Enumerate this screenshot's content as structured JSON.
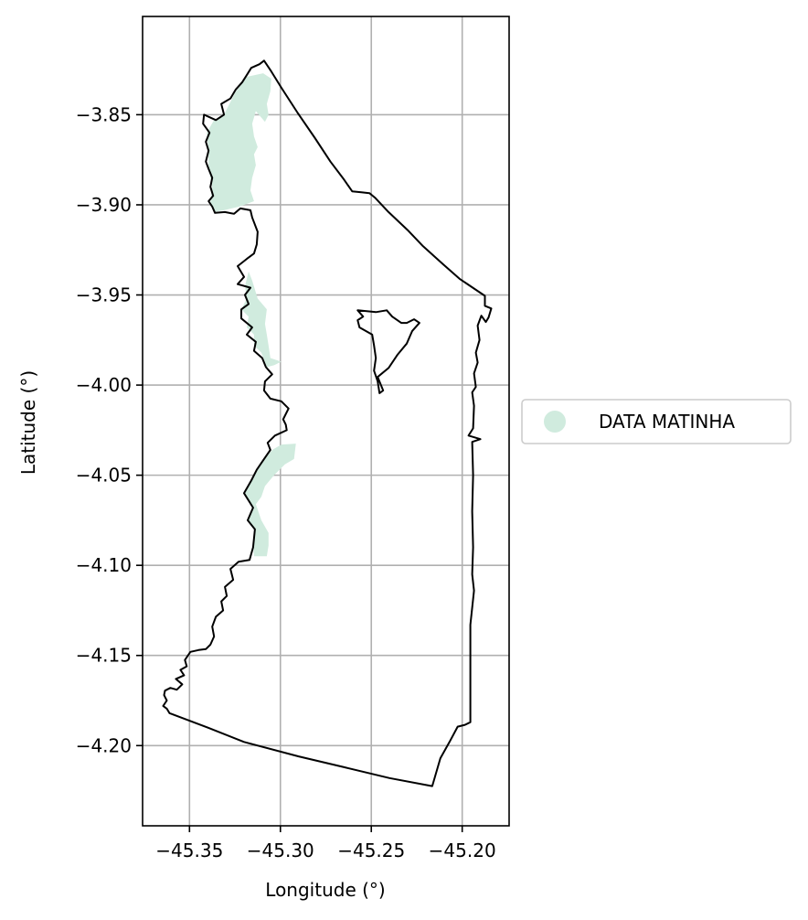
{
  "chart_data": {
    "type": "map",
    "xlabel": "Longitude (°)",
    "ylabel": "Latitude (°)",
    "xlim": [
      -45.3758,
      -45.1742
    ],
    "ylim": [
      -4.2445,
      -3.7955
    ],
    "xticks": [
      -45.35,
      -45.3,
      -45.25,
      -45.2
    ],
    "xtick_labels": [
      "−45.35",
      "−45.30",
      "−45.25",
      "−45.20"
    ],
    "yticks": [
      -3.85,
      -3.9,
      -3.95,
      -4.0,
      -4.05,
      -4.1,
      -4.15,
      -4.2
    ],
    "ytick_labels": [
      "−3.85",
      "−3.90",
      "−3.95",
      "−4.00",
      "−4.05",
      "−4.10",
      "−4.15",
      "−4.20"
    ],
    "grid": true,
    "legend": {
      "placement": "center-right outside",
      "entries": [
        {
          "label": "DATA MATINHA",
          "color": "#d0ebde",
          "marker": "circle"
        }
      ]
    },
    "boundary": {
      "stroke": "#000000",
      "outer": [
        [
          -45.309,
          -3.82
        ],
        [
          -45.305,
          -3.826
        ],
        [
          -45.2995,
          -3.835
        ],
        [
          -45.2905,
          -3.849
        ],
        [
          -45.281,
          -3.863
        ],
        [
          -45.2725,
          -3.876
        ],
        [
          -45.265,
          -3.886
        ],
        [
          -45.2605,
          -3.8925
        ],
        [
          -45.2555,
          -3.893
        ],
        [
          -45.251,
          -3.8935
        ],
        [
          -45.248,
          -3.896
        ],
        [
          -45.2405,
          -3.904
        ],
        [
          -45.23,
          -3.914
        ],
        [
          -45.2215,
          -3.923
        ],
        [
          -45.2105,
          -3.933
        ],
        [
          -45.2015,
          -3.941
        ],
        [
          -45.1875,
          -3.9505
        ],
        [
          -45.1875,
          -3.956
        ],
        [
          -45.184,
          -3.9575
        ],
        [
          -45.1855,
          -3.9625
        ],
        [
          -45.187,
          -3.965
        ],
        [
          -45.1895,
          -3.9615
        ],
        [
          -45.1915,
          -3.967
        ],
        [
          -45.1905,
          -3.975
        ],
        [
          -45.1925,
          -3.982
        ],
        [
          -45.1915,
          -3.9875
        ],
        [
          -45.1935,
          -3.9935
        ],
        [
          -45.1925,
          -4.001
        ],
        [
          -45.1945,
          -4.004
        ],
        [
          -45.1935,
          -4.0115
        ],
        [
          -45.194,
          -4.024
        ],
        [
          -45.1965,
          -4.028
        ],
        [
          -45.19,
          -4.03
        ],
        [
          -45.1945,
          -4.0315
        ],
        [
          -45.194,
          -4.05
        ],
        [
          -45.1945,
          -4.07
        ],
        [
          -45.194,
          -4.09
        ],
        [
          -45.1945,
          -4.105
        ],
        [
          -45.1935,
          -4.114
        ],
        [
          -45.1955,
          -4.133
        ],
        [
          -45.1955,
          -4.16
        ],
        [
          -45.1955,
          -4.187
        ],
        [
          -45.1985,
          -4.1885
        ],
        [
          -45.2025,
          -4.1895
        ],
        [
          -45.207,
          -4.198
        ],
        [
          -45.212,
          -4.207
        ],
        [
          -45.2165,
          -4.2225
        ],
        [
          -45.24,
          -4.218
        ],
        [
          -45.265,
          -4.212
        ],
        [
          -45.29,
          -4.206
        ],
        [
          -45.32,
          -4.198
        ],
        [
          -45.34,
          -4.19
        ],
        [
          -45.361,
          -4.182
        ],
        [
          -45.3625,
          -4.1795
        ],
        [
          -45.3645,
          -4.178
        ],
        [
          -45.3625,
          -4.175
        ],
        [
          -45.364,
          -4.172
        ],
        [
          -45.3635,
          -4.1695
        ],
        [
          -45.3605,
          -4.168
        ],
        [
          -45.357,
          -4.169
        ],
        [
          -45.354,
          -4.166
        ],
        [
          -45.3575,
          -4.163
        ],
        [
          -45.353,
          -4.161
        ],
        [
          -45.355,
          -4.158
        ],
        [
          -45.3515,
          -4.156
        ],
        [
          -45.3525,
          -4.1525
        ],
        [
          -45.3495,
          -4.148
        ],
        [
          -45.345,
          -4.147
        ],
        [
          -45.341,
          -4.1465
        ],
        [
          -45.3385,
          -4.144
        ],
        [
          -45.3365,
          -4.1395
        ],
        [
          -45.3375,
          -4.134
        ],
        [
          -45.3355,
          -4.1285
        ],
        [
          -45.3315,
          -4.125
        ],
        [
          -45.3325,
          -4.12
        ],
        [
          -45.3295,
          -4.117
        ],
        [
          -45.3305,
          -4.112
        ],
        [
          -45.326,
          -4.108
        ],
        [
          -45.3275,
          -4.102
        ],
        [
          -45.323,
          -4.098
        ],
        [
          -45.317,
          -4.097
        ],
        [
          -45.315,
          -4.09
        ],
        [
          -45.314,
          -4.08
        ],
        [
          -45.318,
          -4.075
        ],
        [
          -45.315,
          -4.068
        ],
        [
          -45.32,
          -4.06
        ],
        [
          -45.316,
          -4.053
        ],
        [
          -45.313,
          -4.047
        ],
        [
          -45.309,
          -4.041
        ],
        [
          -45.3055,
          -4.036
        ],
        [
          -45.307,
          -4.032
        ],
        [
          -45.303,
          -4.028
        ],
        [
          -45.2965,
          -4.025
        ],
        [
          -45.297,
          -4.022
        ],
        [
          -45.2985,
          -4.019
        ],
        [
          -45.2955,
          -4.013
        ],
        [
          -45.2995,
          -4.009
        ],
        [
          -45.3055,
          -4.0075
        ],
        [
          -45.309,
          -4.003
        ],
        [
          -45.3085,
          -3.998
        ],
        [
          -45.3045,
          -3.994
        ],
        [
          -45.308,
          -3.99
        ],
        [
          -45.31,
          -3.985
        ],
        [
          -45.3145,
          -3.981
        ],
        [
          -45.3135,
          -3.976
        ],
        [
          -45.3185,
          -3.972
        ],
        [
          -45.3155,
          -3.968
        ],
        [
          -45.3215,
          -3.963
        ],
        [
          -45.3215,
          -3.958
        ],
        [
          -45.3175,
          -3.955
        ],
        [
          -45.3195,
          -3.95
        ],
        [
          -45.3165,
          -3.946
        ],
        [
          -45.3235,
          -3.944
        ],
        [
          -45.32,
          -3.94
        ],
        [
          -45.3235,
          -3.934
        ],
        [
          -45.3185,
          -3.93
        ],
        [
          -45.3145,
          -3.927
        ],
        [
          -45.313,
          -3.922
        ],
        [
          -45.3125,
          -3.915
        ],
        [
          -45.3155,
          -3.907
        ],
        [
          -45.3165,
          -3.903
        ],
        [
          -45.322,
          -3.902
        ],
        [
          -45.3255,
          -3.905
        ],
        [
          -45.3305,
          -3.904
        ],
        [
          -45.336,
          -3.9045
        ],
        [
          -45.3375,
          -3.901
        ],
        [
          -45.3395,
          -3.898
        ],
        [
          -45.337,
          -3.895
        ],
        [
          -45.3385,
          -3.89
        ],
        [
          -45.3375,
          -3.885
        ],
        [
          -45.3395,
          -3.88
        ],
        [
          -45.341,
          -3.876
        ],
        [
          -45.3395,
          -3.87
        ],
        [
          -45.341,
          -3.865
        ],
        [
          -45.339,
          -3.86
        ],
        [
          -45.3425,
          -3.855
        ],
        [
          -45.342,
          -3.85
        ],
        [
          -45.3355,
          -3.853
        ],
        [
          -45.331,
          -3.85
        ],
        [
          -45.3325,
          -3.844
        ],
        [
          -45.3275,
          -3.841
        ],
        [
          -45.3245,
          -3.836
        ],
        [
          -45.321,
          -3.832
        ],
        [
          -45.3185,
          -3.828
        ],
        [
          -45.316,
          -3.824
        ],
        [
          -45.3115,
          -3.822
        ],
        [
          -45.309,
          -3.82
        ]
      ],
      "hole": [
        [
          -45.2575,
          -3.9585
        ],
        [
          -45.2475,
          -3.9595
        ],
        [
          -45.2415,
          -3.9585
        ],
        [
          -45.2385,
          -3.962
        ],
        [
          -45.2335,
          -3.9655
        ],
        [
          -45.2305,
          -3.9655
        ],
        [
          -45.2265,
          -3.9635
        ],
        [
          -45.2235,
          -3.9655
        ],
        [
          -45.2275,
          -3.97
        ],
        [
          -45.2305,
          -3.977
        ],
        [
          -45.2355,
          -3.983
        ],
        [
          -45.2405,
          -3.9905
        ],
        [
          -45.2465,
          -3.9955
        ],
        [
          -45.2435,
          -4.003
        ],
        [
          -45.2455,
          -4.0045
        ],
        [
          -45.2465,
          -3.998
        ],
        [
          -45.2485,
          -3.992
        ],
        [
          -45.2475,
          -3.985
        ],
        [
          -45.2485,
          -3.978
        ],
        [
          -45.2495,
          -3.972
        ],
        [
          -45.2565,
          -3.968
        ],
        [
          -45.2575,
          -3.964
        ],
        [
          -45.2545,
          -3.962
        ],
        [
          -45.2575,
          -3.9585
        ]
      ]
    },
    "series": [
      {
        "name": "DATA MATINHA",
        "color": "#d0ebde",
        "polygons": [
          [
            [
              -45.3095,
              -3.827
            ],
            [
              -45.305,
              -3.83
            ],
            [
              -45.3055,
              -3.837
            ],
            [
              -45.3075,
              -3.844
            ],
            [
              -45.3065,
              -3.85
            ],
            [
              -45.3085,
              -3.854
            ],
            [
              -45.3135,
              -3.848
            ],
            [
              -45.3155,
              -3.855
            ],
            [
              -45.3145,
              -3.862
            ],
            [
              -45.3125,
              -3.868
            ],
            [
              -45.3145,
              -3.872
            ],
            [
              -45.3135,
              -3.878
            ],
            [
              -45.3155,
              -3.885
            ],
            [
              -45.3165,
              -3.892
            ],
            [
              -45.3145,
              -3.898
            ],
            [
              -45.3225,
              -3.901
            ],
            [
              -45.331,
              -3.903
            ],
            [
              -45.3365,
              -3.904
            ],
            [
              -45.3385,
              -3.899
            ],
            [
              -45.3375,
              -3.89
            ],
            [
              -45.3395,
              -3.88
            ],
            [
              -45.3395,
              -3.87
            ],
            [
              -45.3405,
              -3.86
            ],
            [
              -45.3365,
              -3.853
            ],
            [
              -45.331,
              -3.85
            ],
            [
              -45.325,
              -3.838
            ],
            [
              -45.3185,
              -3.829
            ],
            [
              -45.3095,
              -3.827
            ]
          ],
          [
            [
              -45.3175,
              -3.937
            ],
            [
              -45.3155,
              -3.942
            ],
            [
              -45.3125,
              -3.952
            ],
            [
              -45.3075,
              -3.958
            ],
            [
              -45.3085,
              -3.966
            ],
            [
              -45.3075,
              -3.972
            ],
            [
              -45.3065,
              -3.978
            ],
            [
              -45.3055,
              -3.985
            ],
            [
              -45.2995,
              -3.987
            ],
            [
              -45.3035,
              -3.989
            ],
            [
              -45.3075,
              -3.99
            ],
            [
              -45.3105,
              -3.982
            ],
            [
              -45.3145,
              -3.978
            ],
            [
              -45.3145,
              -3.972
            ],
            [
              -45.3185,
              -3.968
            ],
            [
              -45.3175,
              -3.962
            ],
            [
              -45.3215,
              -3.958
            ],
            [
              -45.3185,
              -3.952
            ],
            [
              -45.3195,
              -3.945
            ],
            [
              -45.3175,
              -3.937
            ]
          ],
          [
            [
              -45.2995,
              -4.033
            ],
            [
              -45.2915,
              -4.0325
            ],
            [
              -45.2925,
              -4.041
            ],
            [
              -45.2975,
              -4.044
            ],
            [
              -45.3035,
              -4.05
            ],
            [
              -45.3085,
              -4.056
            ],
            [
              -45.3105,
              -4.062
            ],
            [
              -45.3135,
              -4.066
            ],
            [
              -45.3105,
              -4.075
            ],
            [
              -45.3065,
              -4.082
            ],
            [
              -45.3065,
              -4.089
            ],
            [
              -45.3075,
              -4.095
            ],
            [
              -45.3145,
              -4.095
            ],
            [
              -45.315,
              -4.088
            ],
            [
              -45.3145,
              -4.08
            ],
            [
              -45.318,
              -4.075
            ],
            [
              -45.3155,
              -4.068
            ],
            [
              -45.3195,
              -4.06
            ],
            [
              -45.316,
              -4.053
            ],
            [
              -45.3125,
              -4.047
            ],
            [
              -45.3085,
              -4.041
            ],
            [
              -45.3045,
              -4.036
            ],
            [
              -45.2995,
              -4.033
            ]
          ]
        ]
      }
    ]
  }
}
